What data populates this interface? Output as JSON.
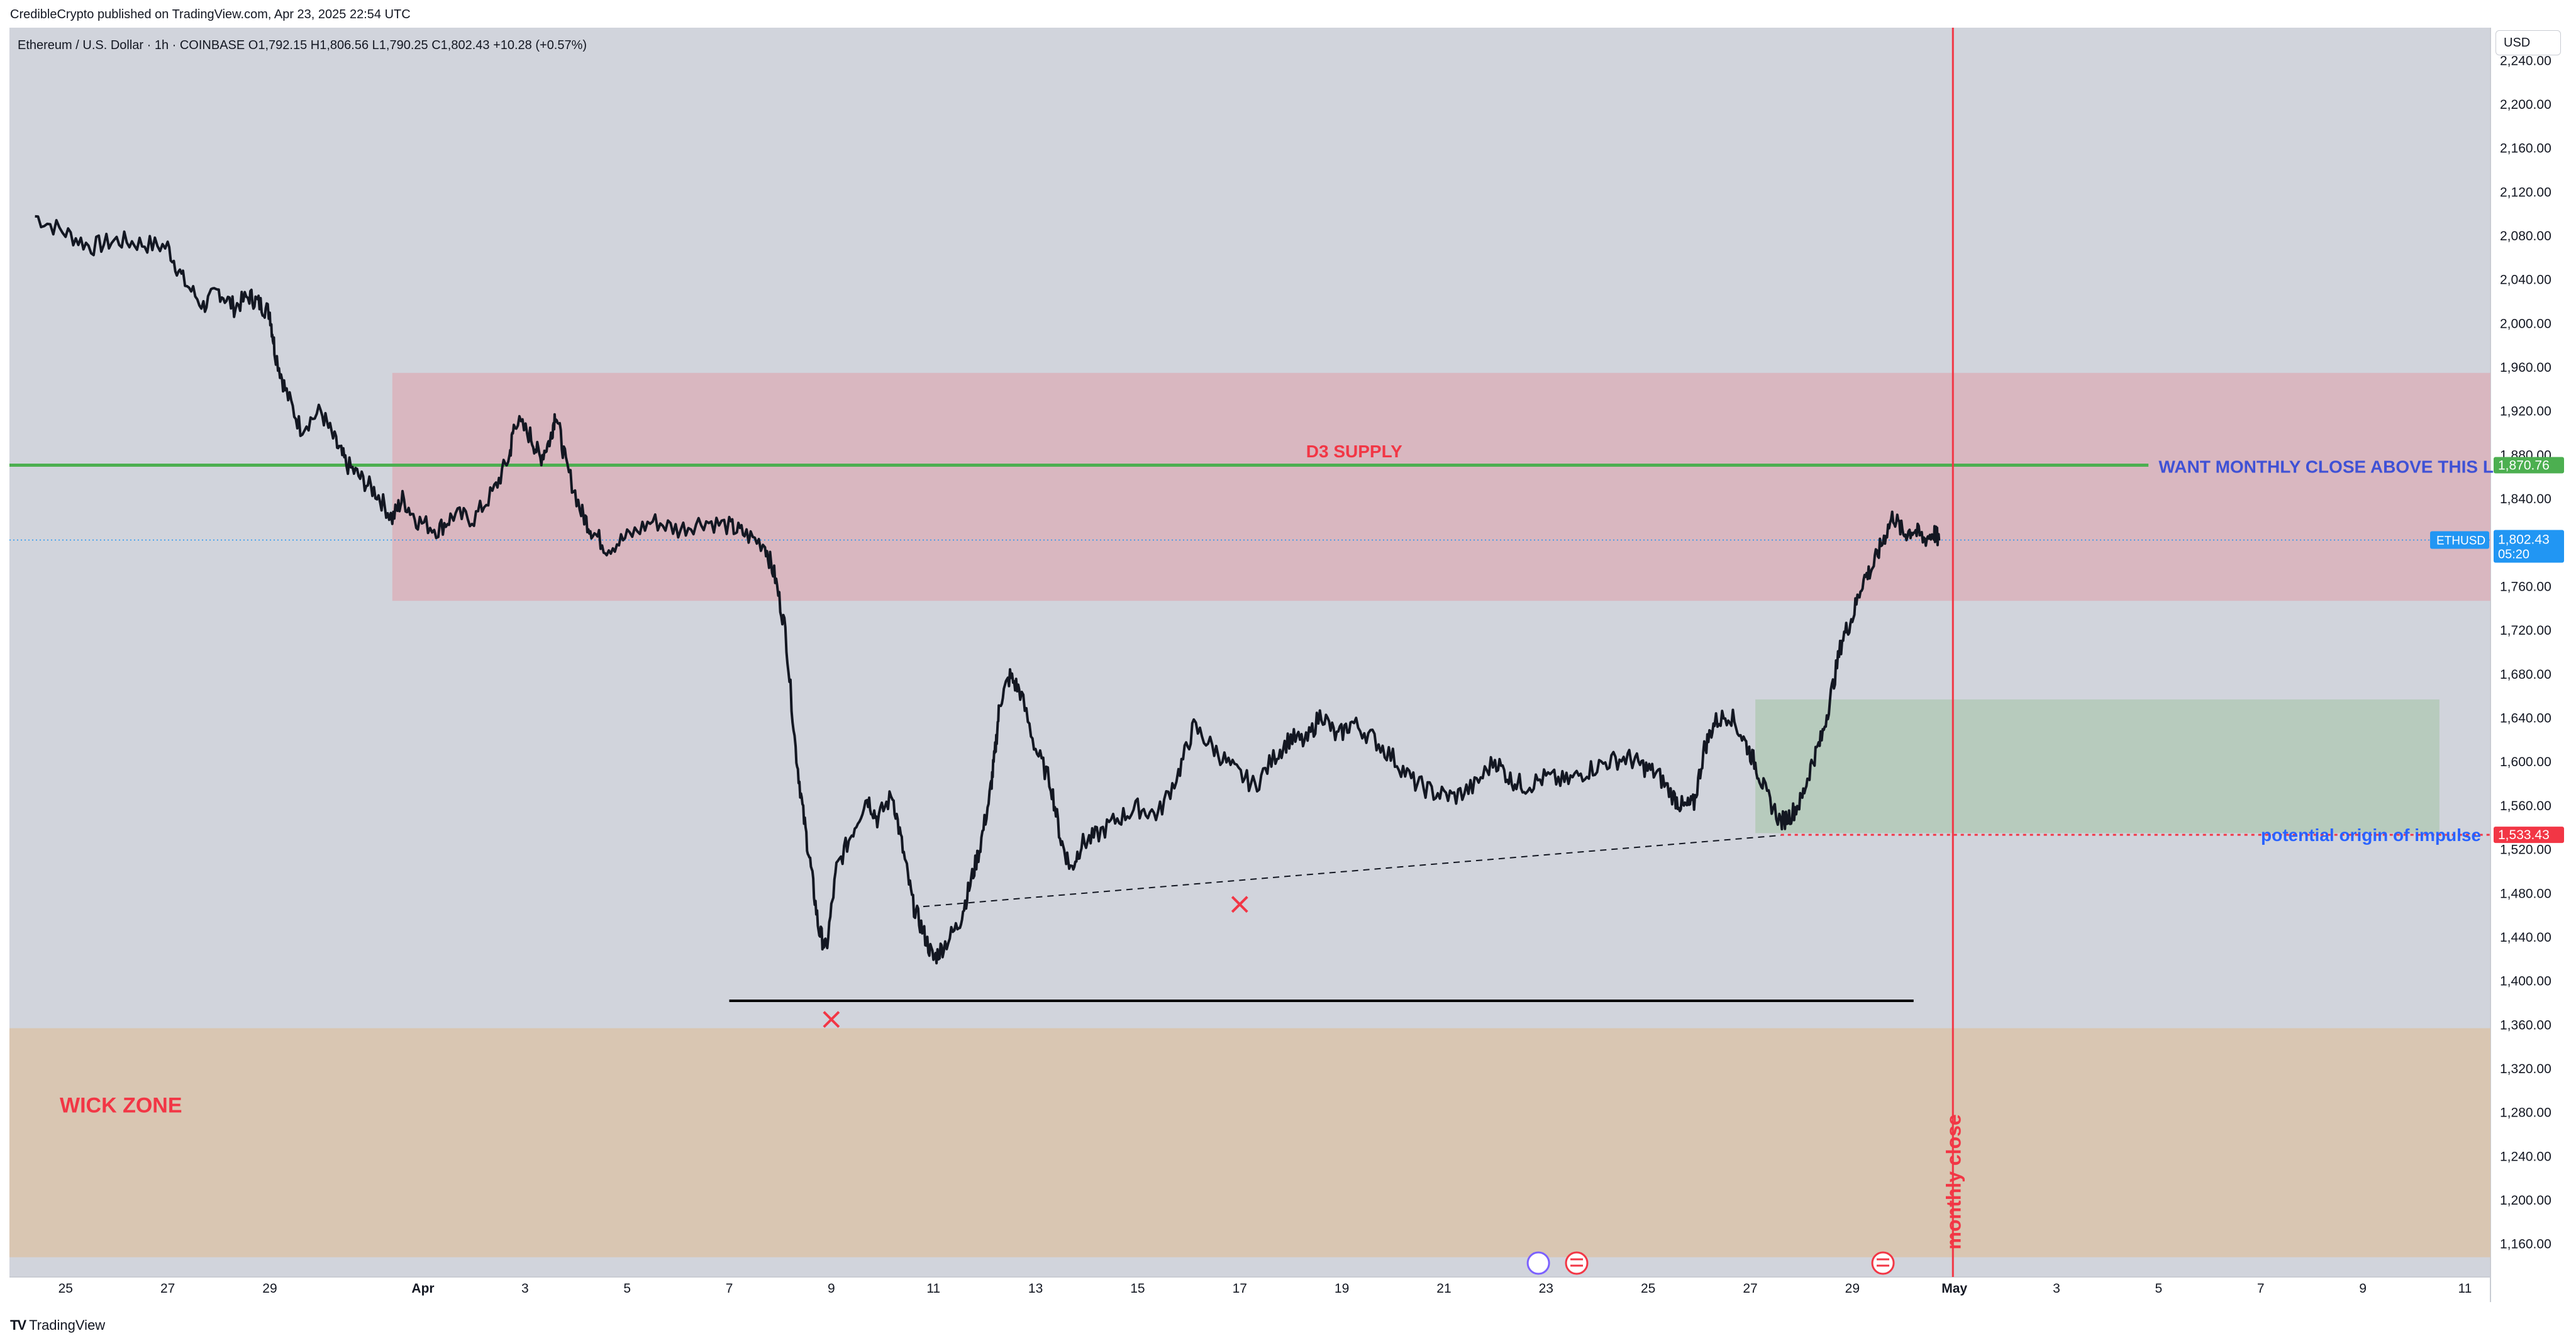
{
  "attribution": "CredibleCrypto published on TradingView.com, Apr 23, 2025 22:54 UTC",
  "footer": {
    "brand": "TradingView"
  },
  "header": {
    "symbol": "Ethereum / U.S. Dollar · 1h · COINBASE",
    "open_label": "O",
    "open": "1,792.15",
    "high_label": "H",
    "high": "1,806.56",
    "low_label": "L",
    "low": "1,790.25",
    "close_label": "C",
    "close": "1,802.43",
    "change": "+10.28 (+0.57%)"
  },
  "currency": "USD",
  "colors": {
    "background": "#d1d4dc",
    "supply_zone": "#d9b7c0",
    "demand_zone": "#b7cbbd",
    "wick_zone": "#d9c6b2",
    "green_line": "#4caf50",
    "red": "#f23645",
    "blue_text": "#2962ff",
    "price_tag": "#2196f3"
  },
  "chart_data": {
    "type": "line",
    "title": "Ethereum / U.S. Dollar · 1h · COINBASE",
    "xlabel": "",
    "ylabel": "",
    "ylim": [
      1130,
      2270
    ],
    "y_ticks": [
      "2,240.00",
      "2,200.00",
      "2,160.00",
      "2,120.00",
      "2,080.00",
      "2,040.00",
      "2,000.00",
      "1,960.00",
      "1,920.00",
      "1,880.00",
      "1,840.00",
      "1,800.00",
      "1,760.00",
      "1,720.00",
      "1,680.00",
      "1,640.00",
      "1,600.00",
      "1,560.00",
      "1,520.00",
      "1,480.00",
      "1,440.00",
      "1,400.00",
      "1,360.00",
      "1,320.00",
      "1,280.00",
      "1,240.00",
      "1,200.00",
      "1,160.00"
    ],
    "x_ticks": [
      {
        "label": "25",
        "day": -7
      },
      {
        "label": "27",
        "day": -5
      },
      {
        "label": "29",
        "day": -3
      },
      {
        "label": "Apr",
        "day": 0
      },
      {
        "label": "3",
        "day": 2
      },
      {
        "label": "5",
        "day": 4
      },
      {
        "label": "7",
        "day": 6
      },
      {
        "label": "9",
        "day": 8
      },
      {
        "label": "11",
        "day": 10
      },
      {
        "label": "13",
        "day": 12
      },
      {
        "label": "15",
        "day": 14
      },
      {
        "label": "17",
        "day": 16
      },
      {
        "label": "19",
        "day": 18
      },
      {
        "label": "21",
        "day": 20
      },
      {
        "label": "23",
        "day": 22
      },
      {
        "label": "25",
        "day": 24
      },
      {
        "label": "27",
        "day": 26
      },
      {
        "label": "29",
        "day": 28
      },
      {
        "label": "May",
        "day": 30
      },
      {
        "label": "3",
        "day": 32
      },
      {
        "label": "5",
        "day": 34
      },
      {
        "label": "7",
        "day": 36
      },
      {
        "label": "9",
        "day": 38
      },
      {
        "label": "11",
        "day": 40
      }
    ],
    "series": [
      {
        "points": [
          [
            -7.6,
            2098
          ],
          [
            -7.0,
            2083
          ],
          [
            -6.5,
            2070
          ],
          [
            -6.0,
            2076
          ],
          [
            -5.5,
            2073
          ],
          [
            -5.0,
            2070
          ],
          [
            -4.7,
            2040
          ],
          [
            -4.3,
            2016
          ],
          [
            -4.0,
            2030
          ],
          [
            -3.7,
            2015
          ],
          [
            -3.4,
            2025
          ],
          [
            -3.2,
            2018
          ],
          [
            -3.0,
            2010
          ],
          [
            -2.9,
            1975
          ],
          [
            -2.7,
            1940
          ],
          [
            -2.4,
            1905
          ],
          [
            -2.0,
            1920
          ],
          [
            -1.7,
            1890
          ],
          [
            -1.5,
            1872
          ],
          [
            -1.2,
            1858
          ],
          [
            -0.9,
            1845
          ],
          [
            -0.6,
            1822
          ],
          [
            -0.4,
            1840
          ],
          [
            -0.1,
            1820
          ],
          [
            0.3,
            1812
          ],
          [
            0.6,
            1825
          ],
          [
            1.0,
            1822
          ],
          [
            1.4,
            1848
          ],
          [
            1.7,
            1880
          ],
          [
            1.8,
            1912
          ],
          [
            2.1,
            1898
          ],
          [
            2.3,
            1877
          ],
          [
            2.5,
            1895
          ],
          [
            2.6,
            1920
          ],
          [
            2.8,
            1872
          ],
          [
            3.1,
            1828
          ],
          [
            3.3,
            1812
          ],
          [
            3.6,
            1795
          ],
          [
            4.0,
            1805
          ],
          [
            4.5,
            1820
          ],
          [
            5.0,
            1812
          ],
          [
            5.5,
            1820
          ],
          [
            6.0,
            1815
          ],
          [
            6.3,
            1808
          ],
          [
            6.7,
            1798
          ],
          [
            6.9,
            1768
          ],
          [
            7.1,
            1720
          ],
          [
            7.3,
            1612
          ],
          [
            7.45,
            1552
          ],
          [
            7.6,
            1503
          ],
          [
            7.75,
            1448
          ],
          [
            7.9,
            1428
          ],
          [
            8.1,
            1502
          ],
          [
            8.4,
            1535
          ],
          [
            8.7,
            1568
          ],
          [
            8.9,
            1548
          ],
          [
            9.2,
            1570
          ],
          [
            9.4,
            1520
          ],
          [
            9.6,
            1470
          ],
          [
            9.8,
            1445
          ],
          [
            10.0,
            1420
          ],
          [
            10.2,
            1432
          ],
          [
            10.5,
            1452
          ],
          [
            10.7,
            1485
          ],
          [
            10.9,
            1520
          ],
          [
            11.1,
            1568
          ],
          [
            11.2,
            1605
          ],
          [
            11.3,
            1655
          ],
          [
            11.5,
            1678
          ],
          [
            11.7,
            1664
          ],
          [
            12.0,
            1612
          ],
          [
            12.3,
            1580
          ],
          [
            12.5,
            1528
          ],
          [
            12.7,
            1502
          ],
          [
            12.9,
            1525
          ],
          [
            13.2,
            1533
          ],
          [
            13.6,
            1548
          ],
          [
            14.0,
            1558
          ],
          [
            14.4,
            1552
          ],
          [
            14.8,
            1590
          ],
          [
            15.1,
            1632
          ],
          [
            15.5,
            1612
          ],
          [
            15.9,
            1592
          ],
          [
            16.3,
            1578
          ],
          [
            16.7,
            1606
          ],
          [
            17.0,
            1622
          ],
          [
            17.3,
            1618
          ],
          [
            17.6,
            1645
          ],
          [
            17.9,
            1622
          ],
          [
            18.2,
            1636
          ],
          [
            18.6,
            1622
          ],
          [
            19.0,
            1604
          ],
          [
            19.4,
            1582
          ],
          [
            19.8,
            1572
          ],
          [
            20.2,
            1568
          ],
          [
            20.6,
            1578
          ],
          [
            21.0,
            1602
          ],
          [
            21.3,
            1584
          ],
          [
            21.6,
            1578
          ],
          [
            22.0,
            1586
          ],
          [
            22.4,
            1582
          ],
          [
            22.8,
            1592
          ],
          [
            23.2,
            1600
          ],
          [
            23.6,
            1604
          ],
          [
            23.9,
            1596
          ],
          [
            24.2,
            1588
          ],
          [
            24.5,
            1568
          ],
          [
            24.7,
            1558
          ],
          [
            24.9,
            1562
          ],
          [
            25.1,
            1612
          ],
          [
            25.3,
            1636
          ],
          [
            25.6,
            1644
          ],
          [
            25.9,
            1618
          ],
          [
            26.1,
            1598
          ],
          [
            26.3,
            1572
          ],
          [
            26.6,
            1545
          ],
          [
            26.8,
            1552
          ],
          [
            27.0,
            1565
          ],
          [
            27.2,
            1598
          ],
          [
            27.4,
            1622
          ],
          [
            27.6,
            1665
          ],
          [
            27.8,
            1712
          ],
          [
            28.0,
            1732
          ],
          [
            28.2,
            1765
          ],
          [
            28.4,
            1778
          ],
          [
            28.6,
            1802
          ],
          [
            28.8,
            1825
          ],
          [
            29.0,
            1808
          ],
          [
            29.2,
            1812
          ],
          [
            29.4,
            1803
          ],
          [
            29.6,
            1809
          ],
          [
            29.7,
            1802
          ]
        ]
      }
    ],
    "zones": [
      {
        "name": "D3 SUPPLY",
        "from_price": 1747,
        "to_price": 1955
      },
      {
        "name": "demand",
        "from_price": 1535,
        "to_price": 1657
      },
      {
        "name": "WICK ZONE",
        "from_price": 1148,
        "to_price": 1357
      }
    ],
    "levels": {
      "monthly_close_level": 1870.76,
      "last_price": 1802.43,
      "impulse_origin": 1533.43,
      "support": 1382
    },
    "annotations": {
      "want_monthly": "WANT MONTHLY CLOSE ABOVE THIS LEVEL",
      "d3_supply": "D3 SUPPLY",
      "potential_origin": "potential origin of impulse",
      "wick_zone": "WICK ZONE",
      "monthly_close": "monthly close"
    },
    "price_tags": {
      "green": "1,870.76",
      "ethusd_label": "ETHUSD",
      "last_price": "1,802.43",
      "countdown": "05:20",
      "red": "1,533.43"
    },
    "grid": false,
    "legend": "none"
  }
}
